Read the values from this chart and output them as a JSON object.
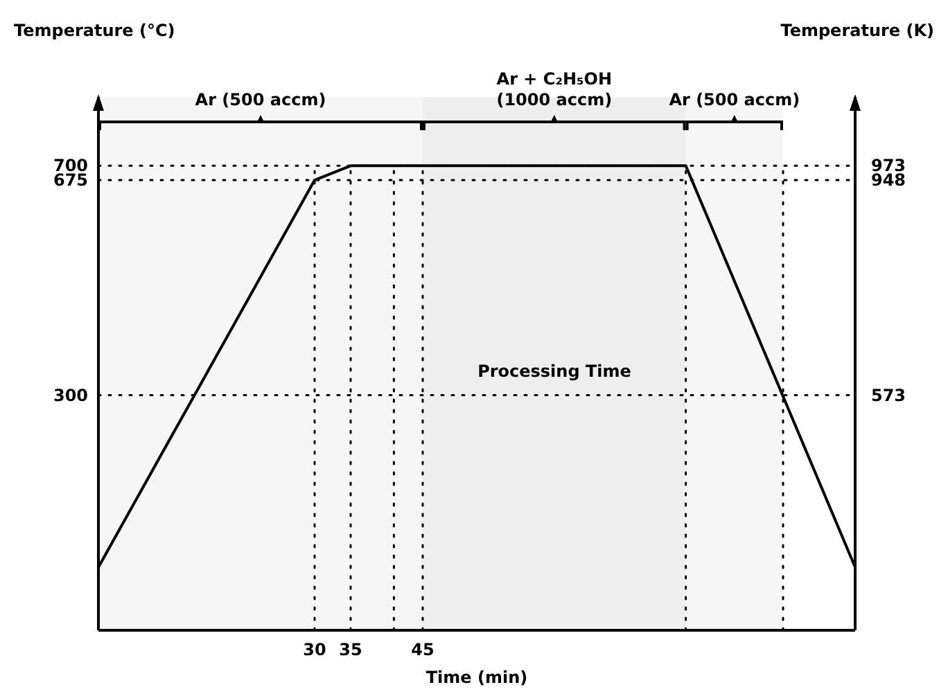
{
  "chart_data": {
    "type": "line",
    "xlabel": "Time (min)",
    "ylabel": "Temperature (°C)",
    "y2label": "Temperature (K)",
    "x": [
      0,
      30,
      35,
      81.5,
      105
    ],
    "series": [
      {
        "color": "#000000",
        "values": [
          0,
          675,
          700,
          700,
          0
        ]
      }
    ],
    "xlim": [
      0,
      105
    ],
    "xticks": [
      30,
      35,
      45
    ],
    "ylim": [
      -110,
      820
    ],
    "yticks": [
      300,
      675,
      700
    ],
    "y2lim": [
      163,
      1093
    ],
    "y2ticks": [
      573,
      948,
      973
    ],
    "ref_lines": [
      {
        "axis": "y",
        "value": 700,
        "line_style": "dotted",
        "color": "#000000"
      },
      {
        "axis": "y",
        "value": 675,
        "line_style": "dotted",
        "color": "#000000"
      },
      {
        "axis": "y",
        "value": 300,
        "line_style": "dotted",
        "color": "#000000"
      },
      {
        "axis": "x",
        "value": 30,
        "line_style": "dotted",
        "color": "#000000"
      },
      {
        "axis": "x",
        "value": 35,
        "line_style": "dotted",
        "color": "#000000"
      },
      {
        "axis": "x",
        "value": 41,
        "line_style": "dotted",
        "color": "#000000"
      },
      {
        "axis": "x",
        "value": 45,
        "line_style": "dotted",
        "color": "#000000"
      },
      {
        "axis": "x",
        "value": 81.5,
        "line_style": "dotted",
        "color": "#000000"
      },
      {
        "axis": "x",
        "value": 95,
        "line_style": "dotted",
        "color": "#000000"
      }
    ],
    "bands": [
      {
        "axis": "x",
        "from": 0,
        "to": 45,
        "label": "Ar (500 accm)",
        "color": "#f6f6f6"
      },
      {
        "axis": "x",
        "from": 45,
        "to": 81.5,
        "label": "Ar + C₂H₅OH (1000 accm)",
        "color": "#eeeeee"
      },
      {
        "axis": "x",
        "from": 81.5,
        "to": 95,
        "label": "Ar (500 accm)",
        "color": "#f6f6f6"
      }
    ],
    "annotations": [
      "Processing Time"
    ],
    "marker": "none",
    "line_style": "solid",
    "grid": false
  }
}
